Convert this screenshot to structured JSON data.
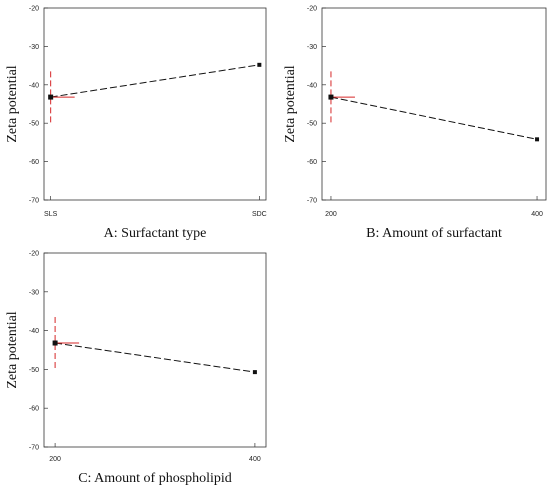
{
  "chart_data": [
    {
      "type": "line",
      "xlabel": "A: Surfactant type",
      "ylabel": "Zeta potential",
      "categories": [
        "SLS",
        "SDC"
      ],
      "values": [
        -43.2,
        -34.8
      ],
      "ylim": [
        -70,
        -20
      ],
      "yticks": [
        -20,
        -30,
        -40,
        -50,
        -60,
        -70
      ],
      "error_bar": {
        "at": "SLS",
        "center": -43.2,
        "low": -50,
        "high": -36.5
      },
      "grid": false,
      "colors": {
        "line": "#111111",
        "error": "#d62728"
      }
    },
    {
      "type": "line",
      "xlabel": "B: Amount of surfactant",
      "ylabel": "Zeta potential",
      "categories": [
        "200",
        "400"
      ],
      "values": [
        -43.2,
        -54.2
      ],
      "ylim": [
        -70,
        -20
      ],
      "yticks": [
        -20,
        -30,
        -40,
        -50,
        -60,
        -70
      ],
      "error_bar": {
        "at": "200",
        "center": -43.2,
        "low": -50,
        "high": -36.5
      },
      "grid": false,
      "colors": {
        "line": "#111111",
        "error": "#d62728"
      }
    },
    {
      "type": "line",
      "xlabel": "C: Amount of phospholipid",
      "ylabel": "Zeta potential",
      "categories": [
        "200",
        "400"
      ],
      "values": [
        -43.2,
        -50.7
      ],
      "ylim": [
        -70,
        -20
      ],
      "yticks": [
        -20,
        -30,
        -40,
        -50,
        -60,
        -70
      ],
      "error_bar": {
        "at": "200",
        "center": -43.2,
        "low": -50,
        "high": -36.5
      },
      "grid": false,
      "colors": {
        "line": "#111111",
        "error": "#d62728"
      }
    }
  ]
}
